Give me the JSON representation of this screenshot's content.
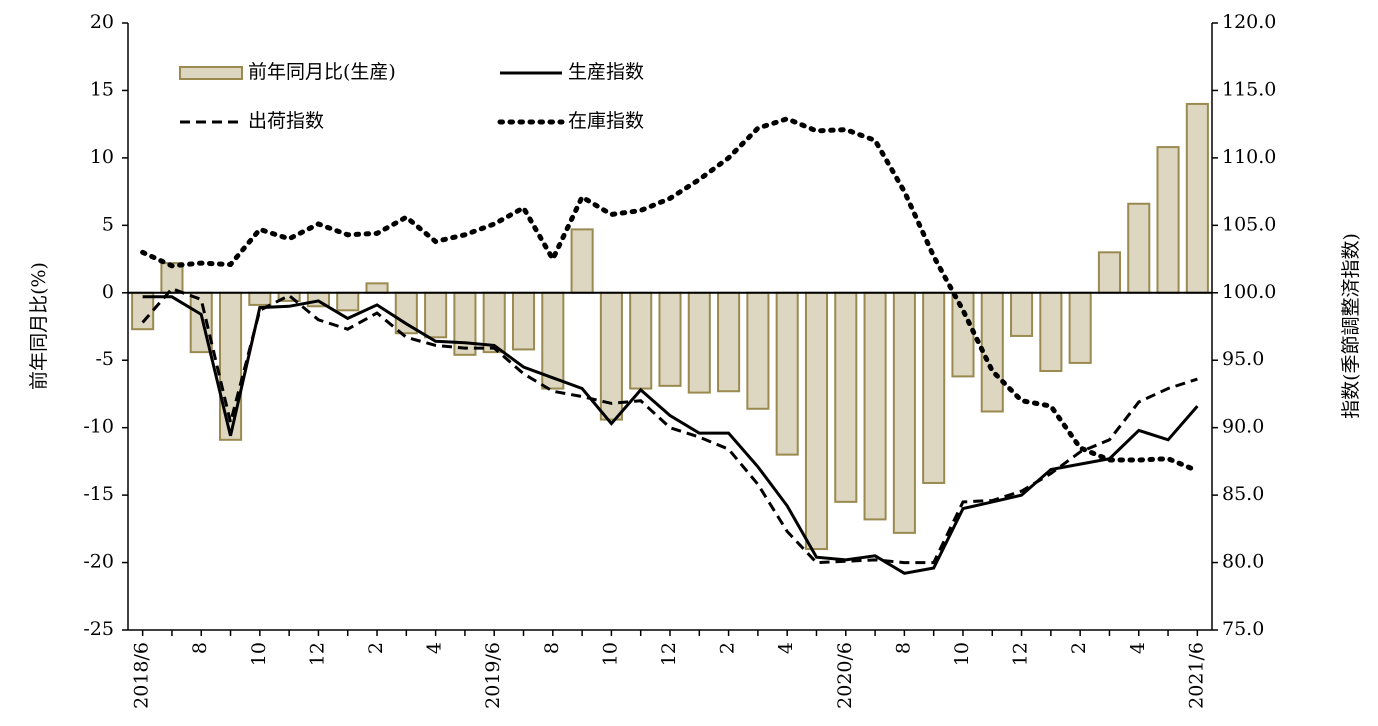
{
  "chart_data": {
    "type": "bar-line",
    "ylabel": "前年同月比(%)",
    "y2label": "指数(季節調整済指数)",
    "categories": [
      "2018/6",
      null,
      "8",
      null,
      "10",
      null,
      "12",
      null,
      "2",
      null,
      "4",
      null,
      "2019/6",
      null,
      "8",
      null,
      "10",
      null,
      "12",
      null,
      "2",
      null,
      "4",
      null,
      "2020/6",
      null,
      "8",
      null,
      "10",
      null,
      "12",
      null,
      "2",
      null,
      "4",
      null,
      "2021/6"
    ],
    "ylim": [
      -25,
      20
    ],
    "yticks": [
      -25,
      -20,
      -15,
      -10,
      -5,
      0,
      5,
      10,
      15,
      20
    ],
    "y2lim": [
      75,
      120
    ],
    "y2ticks": [
      {
        "value": 75,
        "label": "75.0"
      },
      {
        "value": 80,
        "label": "80.0"
      },
      {
        "value": 85,
        "label": "85.0"
      },
      {
        "value": 90,
        "label": "90.0"
      },
      {
        "value": 95,
        "label": "95.0"
      },
      {
        "value": 100,
        "label": "100.0"
      },
      {
        "value": 105,
        "label": "105.0"
      },
      {
        "value": 110,
        "label": "110.0"
      },
      {
        "value": 115,
        "label": "115.0"
      },
      {
        "value": 120,
        "label": "120.0"
      }
    ],
    "series": [
      {
        "name": "前年同月比(生産)",
        "type": "bar",
        "color": "#ddd6c1",
        "edge": "#9a8a50",
        "values": [
          -2.7,
          2.2,
          -4.4,
          -10.9,
          -0.9,
          -0.6,
          -1.0,
          -1.3,
          0.7,
          -3.0,
          -3.3,
          -4.6,
          -4.4,
          -4.2,
          -7.1,
          4.7,
          -9.4,
          -7.1,
          -6.9,
          -7.4,
          -7.3,
          -8.6,
          -12.0,
          -19.0,
          -15.5,
          -16.8,
          -17.8,
          -14.1,
          -6.2,
          -8.8,
          -3.2,
          -5.8,
          -5.2,
          3.0,
          6.6,
          10.8,
          14.0
        ]
      },
      {
        "name": "生産指数",
        "type": "line",
        "axis": "y2",
        "color": "#000000",
        "dash": "solid",
        "values": [
          99.7,
          99.7,
          98.4,
          89.4,
          98.9,
          99.0,
          99.4,
          98.1,
          99.1,
          97.7,
          96.4,
          96.3,
          96.1,
          94.5,
          93.7,
          92.9,
          90.3,
          92.8,
          90.9,
          89.6,
          89.6,
          87.1,
          84.2,
          80.4,
          80.2,
          80.5,
          79.2,
          79.6,
          84.0,
          84.5,
          85.0,
          86.9,
          87.3,
          87.7,
          89.8,
          89.1,
          91.6
        ]
      },
      {
        "name": "出荷指数",
        "type": "line",
        "axis": "y2",
        "color": "#000000",
        "dash": "dashed",
        "values": [
          97.8,
          100.3,
          99.5,
          90.4,
          98.7,
          99.8,
          98.0,
          97.3,
          98.5,
          96.7,
          96.1,
          95.9,
          95.9,
          94.0,
          92.7,
          92.3,
          91.8,
          92.0,
          90.0,
          89.3,
          88.4,
          85.8,
          82.3,
          80.0,
          80.1,
          80.2,
          80.0,
          80.0,
          84.5,
          84.6,
          85.3,
          86.6,
          88.2,
          89.1,
          91.9,
          92.9,
          93.6
        ]
      },
      {
        "name": "在庫指数",
        "type": "line",
        "axis": "y2",
        "color": "#000000",
        "dash": "dotted",
        "values": [
          103.0,
          102.0,
          102.2,
          102.1,
          104.7,
          104.0,
          105.1,
          104.3,
          104.4,
          105.6,
          103.8,
          104.3,
          105.1,
          106.3,
          102.5,
          107.1,
          105.8,
          106.1,
          107.0,
          108.4,
          110.0,
          112.2,
          112.9,
          112.0,
          112.1,
          111.3,
          107.5,
          102.7,
          98.7,
          94.2,
          92.0,
          91.6,
          88.5,
          87.6,
          87.6,
          87.7,
          86.8
        ]
      }
    ],
    "legend": "upper left"
  }
}
